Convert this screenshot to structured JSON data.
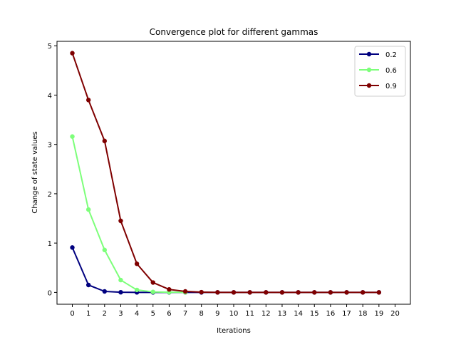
{
  "chart_data": {
    "type": "line",
    "title": "Convergence plot for different gammas",
    "xlabel": "Iterations",
    "ylabel": "Change of state values",
    "xlim": [
      -0.95,
      20.95
    ],
    "ylim": [
      -0.24,
      5.09
    ],
    "xticks": [
      "0",
      "1",
      "2",
      "3",
      "4",
      "5",
      "6",
      "7",
      "8",
      "9",
      "10",
      "11",
      "12",
      "13",
      "14",
      "15",
      "16",
      "17",
      "18",
      "19",
      "20"
    ],
    "yticks": [
      "0",
      "1",
      "2",
      "3",
      "4",
      "5"
    ],
    "grid": false,
    "legend_position": "top-right",
    "x": [
      0,
      1,
      2,
      3,
      4,
      5,
      6,
      7,
      8,
      9,
      10,
      11,
      12,
      13,
      14,
      15,
      16,
      17,
      18,
      19
    ],
    "series": [
      {
        "name": "0.2",
        "color": "#00007f",
        "x": [
          0,
          1,
          2,
          3,
          4,
          5,
          6,
          7,
          8,
          9,
          10,
          11,
          12,
          13,
          14,
          15,
          16,
          17,
          18,
          19
        ],
        "values": [
          0.91,
          0.15,
          0.02,
          0.003,
          0.001,
          0.0,
          0.0,
          0.0,
          0.0,
          0.0,
          0.0,
          0.0,
          0.0,
          0.0,
          0.0,
          0.0,
          0.0,
          0.0,
          0.0,
          0.0
        ]
      },
      {
        "name": "0.6",
        "color": "#7dff7a",
        "x": [
          0,
          1,
          2,
          3,
          4,
          5,
          6,
          7
        ],
        "values": [
          3.16,
          1.68,
          0.86,
          0.25,
          0.05,
          0.01,
          0.003,
          0.001
        ]
      },
      {
        "name": "0.9",
        "color": "#7f0000",
        "x": [
          0,
          1,
          2,
          3,
          4,
          5,
          6,
          7,
          8,
          9,
          10,
          11,
          12,
          13,
          14,
          15,
          16,
          17,
          18,
          19
        ],
        "values": [
          4.85,
          3.9,
          3.07,
          1.45,
          0.58,
          0.2,
          0.06,
          0.02,
          0.005,
          0.001,
          0.0,
          0.0,
          0.0,
          0.0,
          0.0,
          0.0,
          0.0,
          0.0,
          0.0,
          0.0
        ]
      }
    ]
  }
}
